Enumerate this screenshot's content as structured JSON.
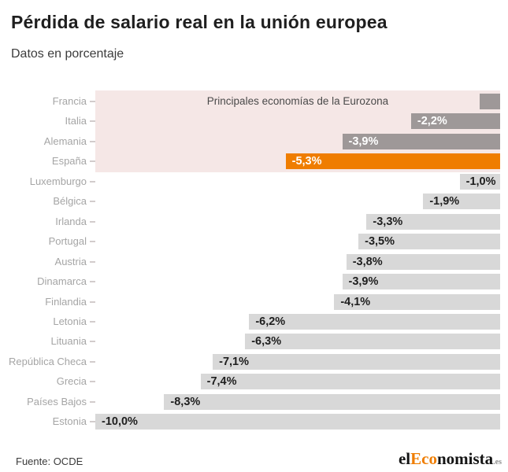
{
  "header": {
    "title": "Pérdida de salario real en la unión europea",
    "subtitle": "Datos en porcentaje"
  },
  "footer": {
    "source_label": "Fuente: OCDE",
    "logo": {
      "prefix": "el",
      "highlight": "Eco",
      "suffix": "nomista",
      "tld": ".es"
    }
  },
  "colors": {
    "accent_orange": "#ef7d00",
    "bar_light_gray": "#d8d8d8",
    "bar_dark_gray": "#9e9898",
    "eurozone_band_pink": "#f5e7e6",
    "country_label_gray": "#a5a5a5"
  },
  "chart_data": {
    "type": "bar",
    "orientation": "horizontal",
    "title": "Pérdida de salario real en la unión europea",
    "subtitle": "Datos en porcentaje",
    "value_unit": "%",
    "xlim": [
      -10,
      0
    ],
    "grid": false,
    "legend": false,
    "annotation": "Principales economías de la Eurozona",
    "annotation_note": "pink band groups the first four rows; Spain highlighted orange",
    "rows": [
      {
        "country": "Francia",
        "value": -0.5,
        "label": "",
        "style": "eurozone"
      },
      {
        "country": "Italia",
        "value": -2.2,
        "label": "-2,2%",
        "style": "eurozone"
      },
      {
        "country": "Alemania",
        "value": -3.9,
        "label": "-3,9%",
        "style": "eurozone"
      },
      {
        "country": "España",
        "value": -5.3,
        "label": "-5,3%",
        "style": "highlight"
      },
      {
        "country": "Luxemburgo",
        "value": -1.0,
        "label": "-1,0%",
        "style": "default"
      },
      {
        "country": "Bélgica",
        "value": -1.9,
        "label": "-1,9%",
        "style": "default"
      },
      {
        "country": "Irlanda",
        "value": -3.3,
        "label": "-3,3%",
        "style": "default"
      },
      {
        "country": "Portugal",
        "value": -3.5,
        "label": "-3,5%",
        "style": "default"
      },
      {
        "country": "Austria",
        "value": -3.8,
        "label": "-3,8%",
        "style": "default"
      },
      {
        "country": "Dinamarca",
        "value": -3.9,
        "label": "-3,9%",
        "style": "default"
      },
      {
        "country": "Finlandia",
        "value": -4.1,
        "label": "-4,1%",
        "style": "default"
      },
      {
        "country": "Letonia",
        "value": -6.2,
        "label": "-6,2%",
        "style": "default"
      },
      {
        "country": "Lituania",
        "value": -6.3,
        "label": "-6,3%",
        "style": "default"
      },
      {
        "country": "República Checa",
        "value": -7.1,
        "label": "-7,1%",
        "style": "default"
      },
      {
        "country": "Grecia",
        "value": -7.4,
        "label": "-7,4%",
        "style": "default"
      },
      {
        "country": "Países Bajos",
        "value": -8.3,
        "label": "-8,3%",
        "style": "default"
      },
      {
        "country": "Estonia",
        "value": -10.0,
        "label": "-10,0%",
        "style": "default"
      }
    ]
  }
}
